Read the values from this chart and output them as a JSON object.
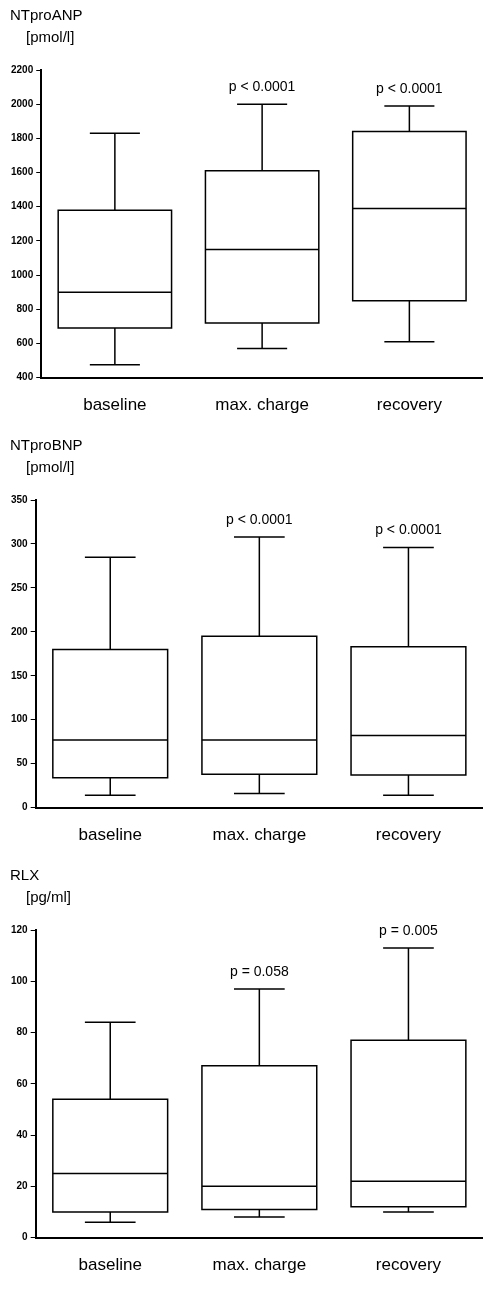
{
  "chart_data": [
    {
      "type": "box",
      "ylabel": "NTproANP\n[pmol/l]",
      "categories": [
        "baseline",
        "max. charge",
        "recovery"
      ],
      "ylim": [
        400,
        2200
      ],
      "yticks": [
        400,
        600,
        800,
        1000,
        1200,
        1400,
        1600,
        1800,
        2000,
        2200
      ],
      "color": "#000000",
      "boxes": [
        {
          "low": 475,
          "q1": 690,
          "median": 900,
          "q3": 1380,
          "high": 1830
        },
        {
          "low": 570,
          "q1": 720,
          "median": 1150,
          "q3": 1610,
          "high": 2000
        },
        {
          "low": 610,
          "q1": 850,
          "median": 1390,
          "q3": 1840,
          "high": 1990
        }
      ],
      "annotations": [
        {
          "text": "p < 0.0001",
          "x": "max. charge",
          "y": 2000
        },
        {
          "text": "p < 0.0001",
          "x": "recovery",
          "y": 1990
        }
      ]
    },
    {
      "type": "box",
      "ylabel": "NTproBNP\n[pmol/l]",
      "categories": [
        "baseline",
        "max. charge",
        "recovery"
      ],
      "ylim": [
        0,
        350
      ],
      "yticks": [
        0,
        50,
        100,
        150,
        200,
        250,
        300,
        350
      ],
      "color": "#000000",
      "boxes": [
        {
          "low": 14,
          "q1": 34,
          "median": 77,
          "q3": 180,
          "high": 285
        },
        {
          "low": 16,
          "q1": 38,
          "median": 77,
          "q3": 195,
          "high": 308
        },
        {
          "low": 14,
          "q1": 37,
          "median": 82,
          "q3": 183,
          "high": 296
        }
      ],
      "annotations": [
        {
          "text": "p < 0.0001",
          "x": "max. charge",
          "y": 308
        },
        {
          "text": "p < 0.0001",
          "x": "recovery",
          "y": 296
        }
      ]
    },
    {
      "type": "box",
      "ylabel": "RLX\n[pg/ml]",
      "categories": [
        "baseline",
        "max. charge",
        "recovery"
      ],
      "ylim": [
        0,
        120
      ],
      "yticks": [
        0,
        20,
        40,
        60,
        80,
        100,
        120
      ],
      "color": "#000000",
      "boxes": [
        {
          "low": 6,
          "q1": 10,
          "median": 25,
          "q3": 54,
          "high": 84
        },
        {
          "low": 8,
          "q1": 11,
          "median": 20,
          "q3": 67,
          "high": 97
        },
        {
          "low": 10,
          "q1": 12,
          "median": 22,
          "q3": 77,
          "high": 113
        }
      ],
      "annotations": [
        {
          "text": "p = 0.058",
          "x": "max. charge",
          "y": 97
        },
        {
          "text": "p = 0.005",
          "x": "recovery",
          "y": 113
        }
      ]
    }
  ]
}
